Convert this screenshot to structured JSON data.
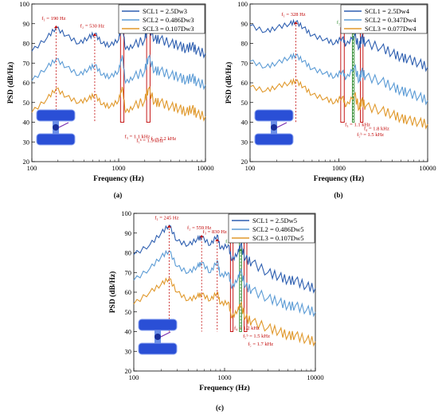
{
  "chart_data": [
    {
      "type": "line",
      "panel_label": "(a)",
      "xlabel": "Frequency (Hz)",
      "ylabel": "PSD (dB/Hz)",
      "x_scale": "log",
      "xlim": [
        100,
        10000
      ],
      "ylim": [
        20,
        100
      ],
      "x_ticks": [
        "100",
        "1000",
        "10000"
      ],
      "y_ticks": [
        "20",
        "30",
        "40",
        "50",
        "60",
        "70",
        "80",
        "90",
        "100"
      ],
      "legend_position": "top-right",
      "series": [
        {
          "name": "SCL1 = 2.5Dw3",
          "color": "#2e5fb0",
          "points": [
            [
              100,
              76
            ],
            [
              150,
              83
            ],
            [
              190,
              88
            ],
            [
              250,
              84
            ],
            [
              350,
              80
            ],
            [
              450,
              83
            ],
            [
              530,
              85
            ],
            [
              650,
              80
            ],
            [
              800,
              79
            ],
            [
              1000,
              82
            ],
            [
              1100,
              90
            ],
            [
              1200,
              77
            ],
            [
              1500,
              79
            ],
            [
              2000,
              82
            ],
            [
              2200,
              89
            ],
            [
              2600,
              82
            ],
            [
              3000,
              82
            ],
            [
              4000,
              80
            ],
            [
              5000,
              79
            ],
            [
              6000,
              77
            ],
            [
              7000,
              79
            ],
            [
              8000,
              76
            ],
            [
              10000,
              75
            ]
          ]
        },
        {
          "name": "SCL2 = 0.486Dw3",
          "color": "#5b9bd5",
          "points": [
            [
              100,
              61
            ],
            [
              150,
              68
            ],
            [
              190,
              72
            ],
            [
              250,
              68
            ],
            [
              350,
              64
            ],
            [
              450,
              67
            ],
            [
              530,
              69
            ],
            [
              650,
              64
            ],
            [
              800,
              63
            ],
            [
              1000,
              66
            ],
            [
              1100,
              74
            ],
            [
              1200,
              60
            ],
            [
              1500,
              63
            ],
            [
              2000,
              66
            ],
            [
              2200,
              73
            ],
            [
              2600,
              66
            ],
            [
              3000,
              66
            ],
            [
              4000,
              64
            ],
            [
              5000,
              63
            ],
            [
              6000,
              61
            ],
            [
              7000,
              63
            ],
            [
              8000,
              60
            ],
            [
              10000,
              59
            ]
          ]
        },
        {
          "name": "SCL3 = 0.107Dw3",
          "color": "#e0982b",
          "points": [
            [
              100,
              45
            ],
            [
              150,
              52
            ],
            [
              190,
              57
            ],
            [
              250,
              53
            ],
            [
              350,
              50
            ],
            [
              450,
              52
            ],
            [
              530,
              54
            ],
            [
              650,
              49
            ],
            [
              800,
              48
            ],
            [
              1000,
              51
            ],
            [
              1100,
              58
            ],
            [
              1200,
              45
            ],
            [
              1500,
              48
            ],
            [
              2000,
              51
            ],
            [
              2200,
              57
            ],
            [
              2600,
              50
            ],
            [
              3000,
              50
            ],
            [
              4000,
              48
            ],
            [
              5000,
              47
            ],
            [
              6000,
              45
            ],
            [
              7000,
              47
            ],
            [
              8000,
              44
            ],
            [
              10000,
              43
            ]
          ]
        }
      ],
      "annotations": [
        {
          "text": "f₁ = 190 Hz",
          "x": 190,
          "y": 92
        },
        {
          "text": "f₂ = 530 Hz",
          "x": 530,
          "y": 88
        },
        {
          "text": "f₃ = 1.1 kHz",
          "x": 1100,
          "y": 32
        },
        {
          "text": "f₅ᵇ = 1.5 kHz",
          "x": 1500,
          "y": 30
        },
        {
          "text": "f₄ = 2.2 kHz",
          "x": 2200,
          "y": 31
        }
      ]
    },
    {
      "type": "line",
      "panel_label": "(b)",
      "xlabel": "Frequency (Hz)",
      "ylabel": "PSD (dB/Hz)",
      "x_scale": "log",
      "xlim": [
        100,
        10000
      ],
      "ylim": [
        20,
        100
      ],
      "x_ticks": [
        "100",
        "1000",
        "10000"
      ],
      "y_ticks": [
        "20",
        "30",
        "40",
        "50",
        "60",
        "70",
        "80",
        "90",
        "100"
      ],
      "legend_position": "top-right",
      "series": [
        {
          "name": "SCL1 = 2.5Dw4",
          "color": "#2e5fb0",
          "points": [
            [
              100,
              89
            ],
            [
              150,
              86
            ],
            [
              200,
              88
            ],
            [
              280,
              90
            ],
            [
              328,
              91
            ],
            [
              400,
              88
            ],
            [
              500,
              84
            ],
            [
              700,
              82
            ],
            [
              900,
              80
            ],
            [
              1100,
              83
            ],
            [
              1200,
              79
            ],
            [
              1500,
              84
            ],
            [
              1700,
              78
            ],
            [
              1800,
              83
            ],
            [
              2000,
              80
            ],
            [
              3000,
              78
            ],
            [
              4000,
              75
            ],
            [
              5000,
              73
            ],
            [
              6000,
              72
            ],
            [
              8000,
              70
            ],
            [
              10000,
              68
            ]
          ]
        },
        {
          "name": "SCL2 = 0.347Dw4",
          "color": "#5b9bd5",
          "points": [
            [
              100,
              71
            ],
            [
              150,
              68
            ],
            [
              200,
              70
            ],
            [
              280,
              73
            ],
            [
              328,
              74
            ],
            [
              400,
              71
            ],
            [
              500,
              67
            ],
            [
              700,
              65
            ],
            [
              900,
              63
            ],
            [
              1100,
              66
            ],
            [
              1200,
              62
            ],
            [
              1500,
              68
            ],
            [
              1700,
              61
            ],
            [
              1800,
              66
            ],
            [
              2000,
              63
            ],
            [
              3000,
              61
            ],
            [
              4000,
              58
            ],
            [
              5000,
              56
            ],
            [
              6000,
              55
            ],
            [
              8000,
              53
            ],
            [
              10000,
              51
            ]
          ]
        },
        {
          "name": "SCL3 = 0.077Dw4",
          "color": "#e0982b",
          "points": [
            [
              100,
              58
            ],
            [
              150,
              56
            ],
            [
              200,
              58
            ],
            [
              280,
              60
            ],
            [
              328,
              61
            ],
            [
              400,
              58
            ],
            [
              500,
              54
            ],
            [
              700,
              52
            ],
            [
              900,
              50
            ],
            [
              1100,
              53
            ],
            [
              1200,
              48
            ],
            [
              1500,
              54
            ],
            [
              1700,
              47
            ],
            [
              1800,
              51
            ],
            [
              2000,
              48
            ],
            [
              3000,
              46
            ],
            [
              4000,
              44
            ],
            [
              5000,
              42
            ],
            [
              6000,
              41
            ],
            [
              8000,
              40
            ],
            [
              10000,
              39
            ]
          ]
        }
      ],
      "annotations": [
        {
          "text": "f₁ = 328 Hz",
          "x": 328,
          "y": 94
        },
        {
          "text": "f₂ = 1.45 kHz",
          "x": 1450,
          "y": 90
        },
        {
          "text": "f₃ = 1.1 kHz",
          "x": 1100,
          "y": 38
        },
        {
          "text": "f₅ᵇ = 1.5 kHz",
          "x": 1500,
          "y": 33
        },
        {
          "text": "f₄ = 1.8 kHz",
          "x": 1800,
          "y": 36
        }
      ]
    },
    {
      "type": "line",
      "panel_label": "(c)",
      "xlabel": "Frequency (Hz)",
      "ylabel": "PSD (dB/Hz)",
      "x_scale": "log",
      "xlim": [
        100,
        10000
      ],
      "ylim": [
        20,
        100
      ],
      "x_ticks": [
        "100",
        "1000",
        "10000"
      ],
      "y_ticks": [
        "20",
        "30",
        "40",
        "50",
        "60",
        "70",
        "80",
        "90",
        "100"
      ],
      "legend_position": "top-right",
      "series": [
        {
          "name": "SCL1 = 2.5Dw5",
          "color": "#2e5fb0",
          "points": [
            [
              100,
              79
            ],
            [
              150,
              84
            ],
            [
              200,
              90
            ],
            [
              245,
              94
            ],
            [
              300,
              86
            ],
            [
              400,
              84
            ],
            [
              500,
              87
            ],
            [
              559,
              88
            ],
            [
              700,
              84
            ],
            [
              830,
              89
            ],
            [
              900,
              82
            ],
            [
              1100,
              84
            ],
            [
              1200,
              76
            ],
            [
              1400,
              80
            ],
            [
              1500,
              84
            ],
            [
              1700,
              77
            ],
            [
              2000,
              75
            ],
            [
              3000,
              70
            ],
            [
              4000,
              68
            ],
            [
              5000,
              66
            ],
            [
              6000,
              66
            ],
            [
              8000,
              63
            ],
            [
              10000,
              62
            ]
          ]
        },
        {
          "name": "SCL2 = 0.486Dw5",
          "color": "#5b9bd5",
          "points": [
            [
              100,
              66
            ],
            [
              150,
              72
            ],
            [
              200,
              78
            ],
            [
              245,
              81
            ],
            [
              300,
              73
            ],
            [
              400,
              70
            ],
            [
              500,
              73
            ],
            [
              559,
              75
            ],
            [
              700,
              70
            ],
            [
              830,
              76
            ],
            [
              900,
              68
            ],
            [
              1100,
              70
            ],
            [
              1200,
              62
            ],
            [
              1400,
              67
            ],
            [
              1500,
              71
            ],
            [
              1700,
              63
            ],
            [
              2000,
              61
            ],
            [
              3000,
              57
            ],
            [
              4000,
              55
            ],
            [
              5000,
              53
            ],
            [
              6000,
              53
            ],
            [
              8000,
              51
            ],
            [
              10000,
              50
            ]
          ]
        },
        {
          "name": "SCL3 = 0.107Dw5",
          "color": "#e0982b",
          "points": [
            [
              100,
              54
            ],
            [
              150,
              60
            ],
            [
              200,
              64
            ],
            [
              245,
              67
            ],
            [
              300,
              60
            ],
            [
              400,
              56
            ],
            [
              500,
              58
            ],
            [
              559,
              59
            ],
            [
              700,
              56
            ],
            [
              830,
              60
            ],
            [
              900,
              54
            ],
            [
              1100,
              55
            ],
            [
              1200,
              47
            ],
            [
              1400,
              51
            ],
            [
              1500,
              54
            ],
            [
              1700,
              47
            ],
            [
              2000,
              45
            ],
            [
              3000,
              42
            ],
            [
              4000,
              40
            ],
            [
              5000,
              38
            ],
            [
              6000,
              38
            ],
            [
              8000,
              36
            ],
            [
              10000,
              35
            ]
          ]
        }
      ],
      "annotations": [
        {
          "text": "f₁ = 245 Hz",
          "x": 245,
          "y": 97
        },
        {
          "text": "f₂ = 559 Hz",
          "x": 559,
          "y": 92
        },
        {
          "text": "f₃ = 830 Hz",
          "x": 830,
          "y": 90
        },
        {
          "text": "f₂ = 1.5 kHz",
          "x": 1500,
          "y": 85
        },
        {
          "text": "f₄ = 1.2 kHz",
          "x": 1200,
          "y": 41
        },
        {
          "text": "f₅ᵇ = 1.5 kHz",
          "x": 1500,
          "y": 37
        },
        {
          "text": "f₅ = 1.7 kHz",
          "x": 1700,
          "y": 33
        }
      ]
    }
  ]
}
